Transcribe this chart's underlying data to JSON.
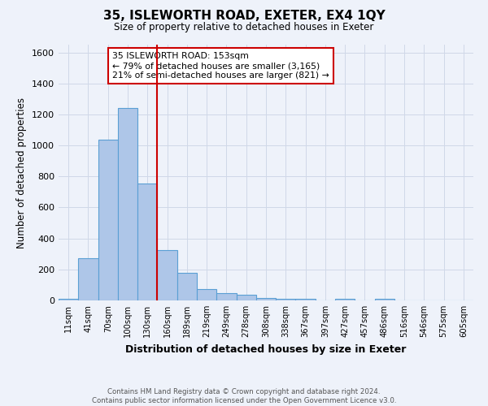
{
  "title": "35, ISLEWORTH ROAD, EXETER, EX4 1QY",
  "subtitle": "Size of property relative to detached houses in Exeter",
  "xlabel": "Distribution of detached houses by size in Exeter",
  "ylabel": "Number of detached properties",
  "footer_line1": "Contains HM Land Registry data © Crown copyright and database right 2024.",
  "footer_line2": "Contains public sector information licensed under the Open Government Licence v3.0.",
  "bar_labels": [
    "11sqm",
    "41sqm",
    "70sqm",
    "100sqm",
    "130sqm",
    "160sqm",
    "189sqm",
    "219sqm",
    "249sqm",
    "278sqm",
    "308sqm",
    "338sqm",
    "367sqm",
    "397sqm",
    "427sqm",
    "457sqm",
    "486sqm",
    "516sqm",
    "546sqm",
    "575sqm",
    "605sqm"
  ],
  "bar_values": [
    10,
    275,
    1035,
    1240,
    755,
    325,
    180,
    75,
    48,
    37,
    17,
    13,
    10,
    0,
    10,
    0,
    10,
    0,
    0,
    0,
    0
  ],
  "bar_color": "#aec6e8",
  "bar_edge_color": "#5a9fd4",
  "bar_width": 1.0,
  "vline_x": 4.5,
  "vline_color": "#cc0000",
  "ylim": [
    0,
    1650
  ],
  "yticks": [
    0,
    200,
    400,
    600,
    800,
    1000,
    1200,
    1400,
    1600
  ],
  "annotation_text": "35 ISLEWORTH ROAD: 153sqm\n← 79% of detached houses are smaller (3,165)\n21% of semi-detached houses are larger (821) →",
  "annotation_box_color": "#ffffff",
  "annotation_box_edge": "#cc0000",
  "grid_color": "#d0d8e8",
  "background_color": "#eef2fa"
}
